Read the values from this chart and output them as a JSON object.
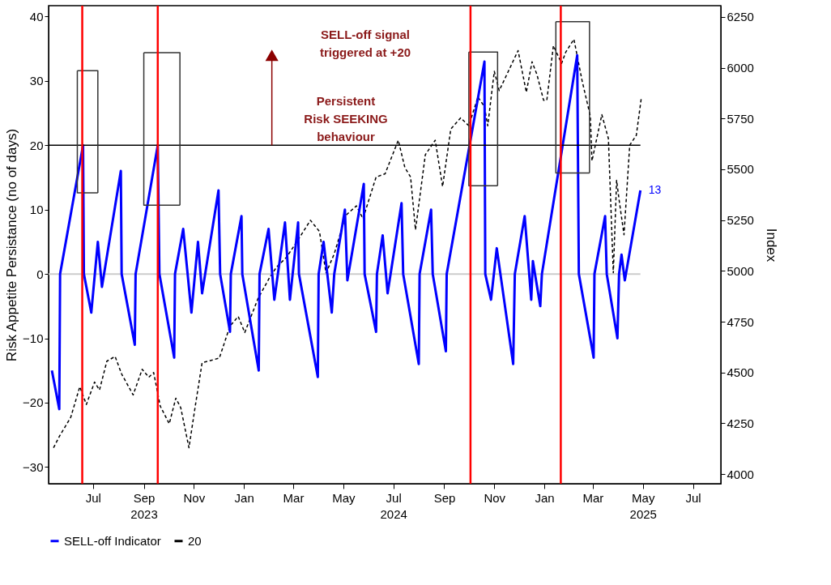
{
  "chart_data": {
    "type": "line",
    "ylabel": "Risk Appetite Persistance (no of days)",
    "y2label": "Index",
    "xlim": [
      "2023-05-08",
      "2025-08-04"
    ],
    "xticks": [
      {
        "value": "2023-07-01",
        "label": "Jul"
      },
      {
        "value": "2023-09-01",
        "label": "Sep\n2023"
      },
      {
        "value": "2023-11-01",
        "label": "Nov"
      },
      {
        "value": "2024-01-01",
        "label": "Jan"
      },
      {
        "value": "2024-03-01",
        "label": "Mar"
      },
      {
        "value": "2024-05-01",
        "label": "May"
      },
      {
        "value": "2024-07-01",
        "label": "Jul\n2024"
      },
      {
        "value": "2024-09-01",
        "label": "Sep"
      },
      {
        "value": "2024-11-01",
        "label": "Nov"
      },
      {
        "value": "2025-01-01",
        "label": "Jan"
      },
      {
        "value": "2025-03-01",
        "label": "Mar"
      },
      {
        "value": "2025-05-01",
        "label": "May\n2025"
      },
      {
        "value": "2025-07-01",
        "label": "Jul"
      }
    ],
    "ylim": [
      -32.6,
      41.7
    ],
    "yticks": [
      -30,
      -20,
      -10,
      0,
      10,
      20,
      30,
      40
    ],
    "y2lim": [
      3953,
      6305
    ],
    "y2ticks": [
      4000,
      4250,
      4500,
      4750,
      5000,
      5250,
      5500,
      5750,
      6000,
      6250
    ],
    "legend": "bottom",
    "series": [
      {
        "color": "#000000",
        "line_style": "dashed",
        "axis": "y2",
        "x": [
          "2023-05-14",
          "2023-05-21",
          "2023-06-04",
          "2023-06-15",
          "2023-06-23",
          "2023-07-03",
          "2023-07-09",
          "2023-07-18",
          "2023-07-28",
          "2023-08-05",
          "2023-08-19",
          "2023-08-30",
          "2023-09-07",
          "2023-09-13",
          "2023-09-21",
          "2023-10-02",
          "2023-10-10",
          "2023-10-16",
          "2023-10-26",
          "2023-11-03",
          "2023-11-11",
          "2023-12-02",
          "2023-12-15",
          "2023-12-25",
          "2024-01-02",
          "2024-01-18",
          "2024-02-02",
          "2024-02-10",
          "2024-02-22",
          "2024-03-06",
          "2024-03-22",
          "2024-04-02",
          "2024-04-10",
          "2024-04-20",
          "2024-05-04",
          "2024-05-17",
          "2024-05-25",
          "2024-06-10",
          "2024-06-21",
          "2024-07-07",
          "2024-07-15",
          "2024-07-22",
          "2024-07-28",
          "2024-08-09",
          "2024-08-21",
          "2024-08-30",
          "2024-09-09",
          "2024-09-21",
          "2024-10-01",
          "2024-10-12",
          "2024-10-20",
          "2024-10-24",
          "2024-11-01",
          "2024-11-07",
          "2024-11-30",
          "2024-12-10",
          "2024-12-17",
          "2024-12-23",
          "2024-12-31",
          "2025-01-04",
          "2025-01-12",
          "2025-01-22",
          "2025-01-27",
          "2025-02-06",
          "2025-02-16",
          "2025-02-26",
          "2025-02-28",
          "2025-03-12",
          "2025-03-20",
          "2025-03-26",
          "2025-03-30",
          "2025-04-02",
          "2025-04-08",
          "2025-04-15",
          "2025-04-23",
          "2025-04-29"
        ],
        "values": [
          4130,
          4185,
          4280,
          4430,
          4343,
          4453,
          4414,
          4556,
          4579,
          4493,
          4390,
          4516,
          4477,
          4500,
          4335,
          4248,
          4374,
          4327,
          4130,
          4343,
          4548,
          4571,
          4729,
          4776,
          4697,
          4863,
          4973,
          5020,
          5068,
          5147,
          5249,
          5194,
          4989,
          5084,
          5273,
          5320,
          5257,
          5462,
          5478,
          5643,
          5509,
          5462,
          5202,
          5572,
          5643,
          5415,
          5698,
          5753,
          5714,
          5856,
          5808,
          5714,
          5982,
          5887,
          6084,
          5879,
          6029,
          5966,
          5840,
          5840,
          6108,
          6021,
          6076,
          6140,
          5935,
          5761,
          5541,
          5769,
          5651,
          4989,
          5446,
          5351,
          5178,
          5619,
          5667,
          5848
        ]
      },
      {
        "name": "SELL-off Indicator",
        "color": "#0000ff",
        "line_style": "solid",
        "x": [
          "2023-05-12",
          "2023-05-21",
          "2023-05-22",
          "2023-06-19",
          "2023-06-20",
          "2023-06-29",
          "2023-07-07",
          "2023-07-12",
          "2023-08-04",
          "2023-08-05",
          "2023-08-21",
          "2023-08-22",
          "2023-09-18",
          "2023-09-20",
          "2023-10-08",
          "2023-10-09",
          "2023-10-19",
          "2023-10-29",
          "2023-11-06",
          "2023-11-11",
          "2023-12-01",
          "2023-12-03",
          "2023-12-15",
          "2023-12-16",
          "2023-12-29",
          "2023-12-30",
          "2024-01-19",
          "2024-01-20",
          "2024-01-31",
          "2024-02-07",
          "2024-02-20",
          "2024-02-26",
          "2024-03-07",
          "2024-03-08",
          "2024-03-31",
          "2024-04-01",
          "2024-04-07",
          "2024-04-17",
          "2024-04-20",
          "2024-05-03",
          "2024-05-06",
          "2024-05-26",
          "2024-05-27",
          "2024-06-10",
          "2024-06-11",
          "2024-06-18",
          "2024-06-24",
          "2024-07-11",
          "2024-07-13",
          "2024-08-01",
          "2024-08-02",
          "2024-08-16",
          "2024-08-18",
          "2024-09-03",
          "2024-09-04",
          "2024-10-20",
          "2024-10-21",
          "2024-10-28",
          "2024-11-04",
          "2024-11-24",
          "2024-11-26",
          "2024-12-08",
          "2024-12-16",
          "2024-12-18",
          "2024-12-27",
          "2024-12-29",
          "2025-02-10",
          "2025-02-12",
          "2025-03-02",
          "2025-03-03",
          "2025-03-16",
          "2025-03-18",
          "2025-03-31",
          "2025-04-02",
          "2025-04-05",
          "2025-04-09",
          "2025-04-28"
        ],
        "values": [
          -15,
          -21,
          0,
          20,
          0,
          -6,
          5,
          -2,
          16,
          0,
          -11,
          0,
          20,
          0,
          -13,
          0,
          7,
          -6,
          5,
          -3,
          13,
          0,
          -9,
          0,
          9,
          0,
          -15,
          0,
          7,
          -4,
          8,
          -4,
          8,
          0,
          -16,
          0,
          5,
          -6,
          0,
          10,
          -1,
          14,
          0,
          -9,
          0,
          6,
          -3,
          11,
          0,
          -14,
          0,
          10,
          0,
          -12,
          0,
          33,
          0,
          -4,
          4,
          -14,
          0,
          9,
          -4,
          2,
          -5,
          0,
          34,
          0,
          -13,
          0,
          9,
          0,
          -10,
          0,
          3,
          -1,
          13
        ]
      },
      {
        "name": "20",
        "color": "#000000",
        "type": "line",
        "line_style": "solid",
        "x": [
          "2023-05-08",
          "2025-04-28"
        ],
        "values": [
          20,
          20
        ]
      },
      {
        "color": "#333333",
        "line_style": "solid",
        "x": [
          "2023-06-12",
          "2023-07-07",
          "2023-07-07"
        ],
        "values": [
          31.6,
          31.6,
          12.6
        ]
      },
      {
        "color": "#333333",
        "line_style": "solid",
        "x": [
          "2023-06-12",
          "2023-06-12",
          "2023-07-07"
        ],
        "values": [
          31.6,
          12.6,
          12.6
        ]
      },
      {
        "color": "#333333",
        "line_style": "solid",
        "x": [
          "2023-09-01",
          "2023-10-15",
          "2023-10-15"
        ],
        "values": [
          34.4,
          34.4,
          10.7
        ]
      },
      {
        "color": "#333333",
        "line_style": "solid",
        "x": [
          "2023-09-01",
          "2023-09-01",
          "2023-10-15"
        ],
        "values": [
          34.4,
          10.7,
          10.7
        ]
      },
      {
        "color": "#333333",
        "line_style": "solid",
        "x": [
          "2024-10-01",
          "2024-11-05",
          "2024-11-05"
        ],
        "values": [
          34.5,
          34.5,
          13.7
        ]
      },
      {
        "color": "#333333",
        "line_style": "solid",
        "x": [
          "2024-10-01",
          "2024-10-01",
          "2024-11-05"
        ],
        "values": [
          34.5,
          13.7,
          13.7
        ]
      },
      {
        "color": "#333333",
        "line_style": "solid",
        "x": [
          "2025-01-15",
          "2025-02-25",
          "2025-02-25"
        ],
        "values": [
          39.2,
          39.2,
          15.7
        ]
      },
      {
        "color": "#333333",
        "line_style": "solid",
        "x": [
          "2025-01-15",
          "2025-01-15",
          "2025-02-25"
        ],
        "values": [
          39.2,
          15.7,
          15.7
        ]
      },
      {
        "color": "#8b0000",
        "type": "line",
        "line_style": "solid",
        "marker": "triangle",
        "x": [
          "2024-02-04",
          "2024-02-04"
        ],
        "values": [
          20,
          34
        ]
      }
    ],
    "ref_lines": [
      {
        "axis": "y",
        "value": 0,
        "color": "#cccccc"
      },
      {
        "axis": "x",
        "value": "2023-06-18",
        "color": "#ff0000"
      },
      {
        "axis": "x",
        "value": "2023-09-18",
        "color": "#ff0000"
      },
      {
        "axis": "x",
        "value": "2024-10-03",
        "color": "#ff0000"
      },
      {
        "axis": "x",
        "value": "2025-01-21",
        "color": "#ff0000"
      }
    ],
    "annotations": [
      "SELL-off signal\ntriggered at +20",
      "Persistent\nRisk SEEKING\nbehaviour",
      {
        "text": "13",
        "x": "2025-04-28",
        "y": 13
      }
    ]
  }
}
